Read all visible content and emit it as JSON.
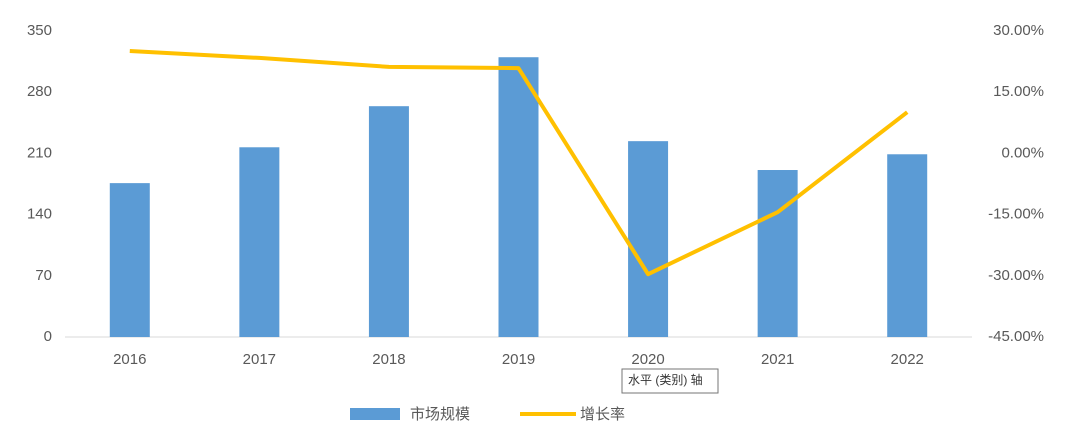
{
  "chart_data": {
    "type": "bar",
    "categories": [
      "2016",
      "2017",
      "2018",
      "2019",
      "2020",
      "2021",
      "2022"
    ],
    "series": [
      {
        "name": "市场规模",
        "type": "bar",
        "color": "#5b9bd5",
        "values": [
          176,
          217,
          264,
          320,
          224,
          191,
          209
        ]
      },
      {
        "name": "增长率",
        "type": "line",
        "axis": "y2",
        "color": "#ffc000",
        "values": [
          25.1,
          23.4,
          21.2,
          20.9,
          -29.6,
          -14.4,
          10.1
        ]
      }
    ],
    "ylim": [
      0,
      350
    ],
    "yticks": [
      0,
      70,
      140,
      210,
      280,
      350
    ],
    "y2lim": [
      -45,
      30
    ],
    "y2ticks": [
      {
        "value": -45,
        "label": "-45.00%"
      },
      {
        "value": -30,
        "label": "-30.00%"
      },
      {
        "value": -15,
        "label": "-15.00%"
      },
      {
        "value": 0,
        "label": "0.00%"
      },
      {
        "value": 15,
        "label": "15.00%"
      },
      {
        "value": 30,
        "label": "30.00%"
      }
    ],
    "legend": "bottom",
    "tooltip": "水平 (类别) 轴"
  }
}
